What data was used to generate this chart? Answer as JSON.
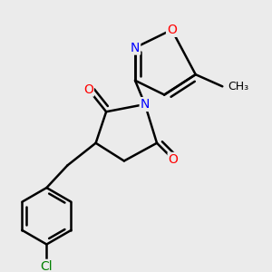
{
  "background_color": "#ebebeb",
  "bond_color": "#000000",
  "bond_width": 1.8,
  "atom_colors": {
    "O": "#ff0000",
    "N": "#0000ff",
    "Cl": "#008000",
    "C": "#000000"
  },
  "font_size": 10,
  "methyl_label": "CH₃"
}
